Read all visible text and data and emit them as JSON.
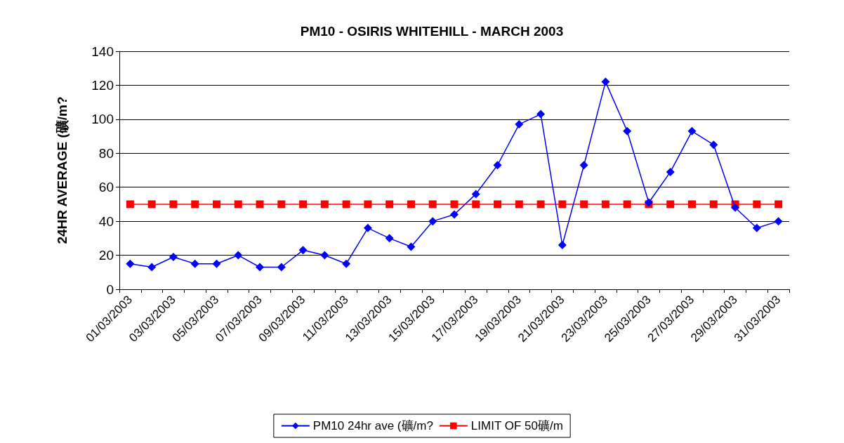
{
  "chart_data": {
    "type": "line",
    "title": "PM10 - OSIRIS WHITEHILL - MARCH 2003",
    "ylabel": "24HR AVERAGE (礦/m?",
    "categories": [
      "01/03/2003",
      null,
      "03/03/2003",
      null,
      "05/03/2003",
      null,
      "07/03/2003",
      null,
      "09/03/2003",
      null,
      "11/03/2003",
      null,
      "13/03/2003",
      null,
      "15/03/2003",
      null,
      "17/03/2003",
      null,
      "19/03/2003",
      null,
      "21/03/2003",
      null,
      "23/03/2003",
      null,
      "25/03/2003",
      null,
      "27/03/2003",
      null,
      "29/03/2003",
      null,
      "31/03/2003"
    ],
    "series": [
      {
        "name": "PM10 24hr ave (礦/m?",
        "color": "#0000ff",
        "marker": "diamond",
        "values": [
          15,
          13,
          19,
          15,
          15,
          20,
          13,
          13,
          23,
          20,
          15,
          36,
          30,
          25,
          40,
          44,
          56,
          73,
          97,
          103,
          26,
          73,
          122,
          93,
          51,
          69,
          93,
          85,
          48,
          36,
          40
        ]
      },
      {
        "name": "LIMIT OF 50礦/m",
        "color": "#ff0000",
        "marker": "square",
        "values": [
          50,
          50,
          50,
          50,
          50,
          50,
          50,
          50,
          50,
          50,
          50,
          50,
          50,
          50,
          50,
          50,
          50,
          50,
          50,
          50,
          50,
          50,
          50,
          50,
          50,
          50,
          50,
          50,
          50,
          50,
          50
        ]
      }
    ],
    "ylim": [
      0,
      140
    ],
    "yticks": [
      0,
      20,
      40,
      60,
      80,
      100,
      120,
      140
    ],
    "grid": "y",
    "legend": "bottom"
  }
}
